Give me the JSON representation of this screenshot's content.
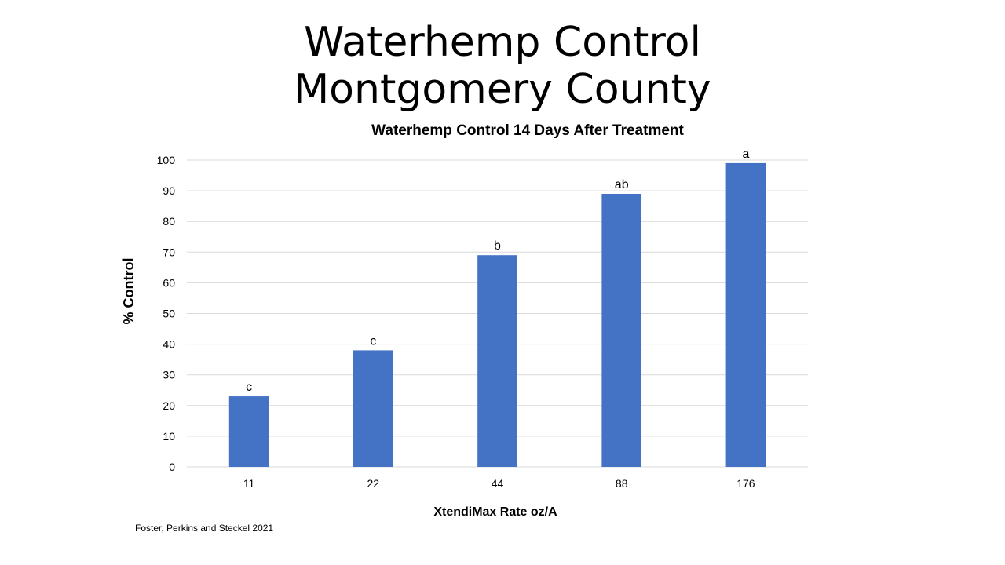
{
  "slide": {
    "title_line1": "Waterhemp Control",
    "title_line2": "Montgomery County",
    "source": "Foster, Perkins and Steckel  2021"
  },
  "colors": {
    "bar": "#4472C4",
    "grid": "#D9D9D9",
    "text": "#000000"
  },
  "chart_data": {
    "type": "bar",
    "title": "Waterhemp Control 14 Days After Treatment",
    "xlabel": "XtendiMax Rate oz/A",
    "ylabel": "% Control",
    "ylim": [
      0,
      100
    ],
    "yticks": [
      0,
      10,
      20,
      30,
      40,
      50,
      60,
      70,
      80,
      90,
      100
    ],
    "categories": [
      "11",
      "22",
      "44",
      "88",
      "176"
    ],
    "values": [
      23,
      38,
      69,
      89,
      99
    ],
    "data_labels": [
      "c",
      "c",
      "b",
      "ab",
      "a"
    ],
    "grid": true
  }
}
